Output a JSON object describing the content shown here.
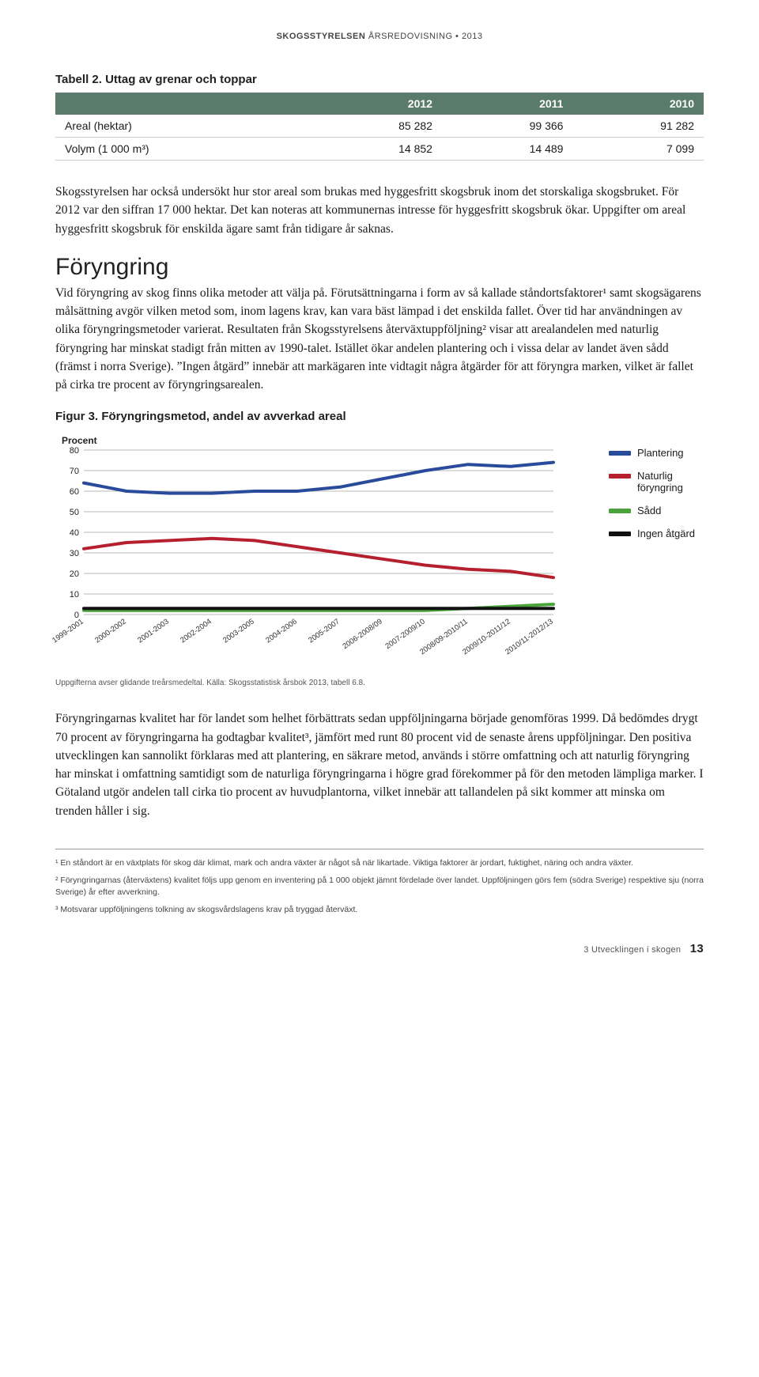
{
  "header": {
    "bold": "SKOGSSTYRELSEN",
    "rest": "ÅRSREDOVISNING • 2013"
  },
  "table": {
    "caption": "Tabell 2. Uttag av grenar och toppar",
    "columns": [
      "",
      "2012",
      "2011",
      "2010"
    ],
    "rows": [
      [
        "Areal (hektar)",
        "85 282",
        "99 366",
        "91 282"
      ],
      [
        "Volym (1 000 m³)",
        "14 852",
        "14 489",
        "7 099"
      ]
    ]
  },
  "para1": "Skogsstyrelsen har också undersökt hur stor areal som brukas med hyggesfritt skogsbruk inom det storskaliga skogsbruket. För 2012 var den siffran 17 000 hektar. Det kan noteras att kommunernas intresse för hyggesfritt skogsbruk ökar. Uppgifter om areal hyggesfritt skogsbruk för enskilda ägare samt från tidigare år saknas.",
  "section_title": "Föryngring",
  "para2": "Vid föryngring av skog finns olika metoder att välja på. Förutsättningarna i form av så kallade ståndortsfaktorer¹ samt skogsägarens målsättning avgör vilken metod som, inom lagens krav, kan vara bäst lämpad i det enskilda fallet. Över tid har användningen av olika föryngringsmetoder varierat. Resultaten från Skogsstyrelsens återväxtuppföljning² visar att arealandelen med naturlig föryngring har minskat stadigt från mitten av 1990-talet. Istället ökar andelen plantering och i vissa delar av landet även sådd (främst i norra Sverige). ”Ingen åtgärd” innebär att markägaren inte vidtagit några åtgärder för att föryngra marken, vilket är fallet på cirka tre procent av föryngringsarealen.",
  "chart": {
    "caption": "Figur 3. Föryngringsmetod, andel av avverkad areal",
    "type": "line",
    "ylabel": "Procent",
    "ylim": [
      0,
      80
    ],
    "ytick_step": 10,
    "yticks": [
      0,
      10,
      20,
      30,
      40,
      50,
      60,
      70,
      80
    ],
    "categories": [
      "1999-2001",
      "2000-2002",
      "2001-2003",
      "2002-2004",
      "2003-2005",
      "2004-2006",
      "2005-2007",
      "2006-2008/09",
      "2007-2009/10",
      "2008/09-2010/11",
      "2009/10-2011/12",
      "2010/11-2012/13"
    ],
    "series": [
      {
        "name": "Plantering",
        "color": "#2a4b9b",
        "values": [
          64,
          60,
          59,
          59,
          60,
          60,
          62,
          66,
          70,
          73,
          72,
          74
        ]
      },
      {
        "name": "Naturlig föryngring",
        "color": "#b6202e",
        "values": [
          32,
          35,
          36,
          37,
          36,
          33,
          30,
          27,
          24,
          22,
          21,
          18
        ]
      },
      {
        "name": "Sådd",
        "color": "#4aa33a",
        "values": [
          2,
          2,
          2,
          2,
          2,
          2,
          2,
          2,
          2,
          3,
          4,
          5
        ]
      },
      {
        "name": "Ingen åtgärd",
        "color": "#111111",
        "values": [
          3,
          3,
          3,
          3,
          3,
          3,
          3,
          3,
          3,
          3,
          3,
          3
        ]
      }
    ],
    "line_width": 4,
    "background_color": "#ffffff",
    "grid_color": "#b8b8b8",
    "grid_on": true,
    "axis_fontsize": 11,
    "label_fontsize": 12,
    "source": "Uppgifterna avser glidande treårsmedeltal. Källa: Skogsstatistisk årsbok 2013, tabell 6.8."
  },
  "para3": "Föryngringarnas kvalitet har för landet som helhet förbättrats sedan uppföljningarna började genomföras 1999. Då bedömdes drygt 70 procent av föryngringarna ha godtagbar kvalitet³, jämfört med runt 80 procent vid de senaste årens uppföljningar. Den positiva utvecklingen kan sannolikt förklaras med att plantering, en säkrare metod, används i större omfattning och att naturlig föryngring har minskat i omfattning samtidigt som de naturliga föryngringarna i högre grad förekommer på för den metoden lämpliga marker. I Götaland utgör andelen tall cirka tio procent av huvudplantorna, vilket innebär att tallandelen på sikt kommer att minska om trenden håller i sig.",
  "footnotes": [
    "¹ En ståndort är en växtplats för skog där klimat, mark och andra växter är något så när likartade. Viktiga faktorer är jordart, fuktighet, näring och andra växter.",
    "² Föryngringarnas (återväxtens) kvalitet följs upp genom en inventering på 1 000 objekt jämnt fördelade över landet. Uppföljningen görs fem (södra Sverige) respektive sju (norra Sverige) år efter avverkning.",
    "³ Motsvarar uppföljningens tolkning av skogsvårdslagens krav på tryggad återväxt."
  ],
  "footer": {
    "section": "3 Utvecklingen i skogen",
    "page": "13"
  }
}
